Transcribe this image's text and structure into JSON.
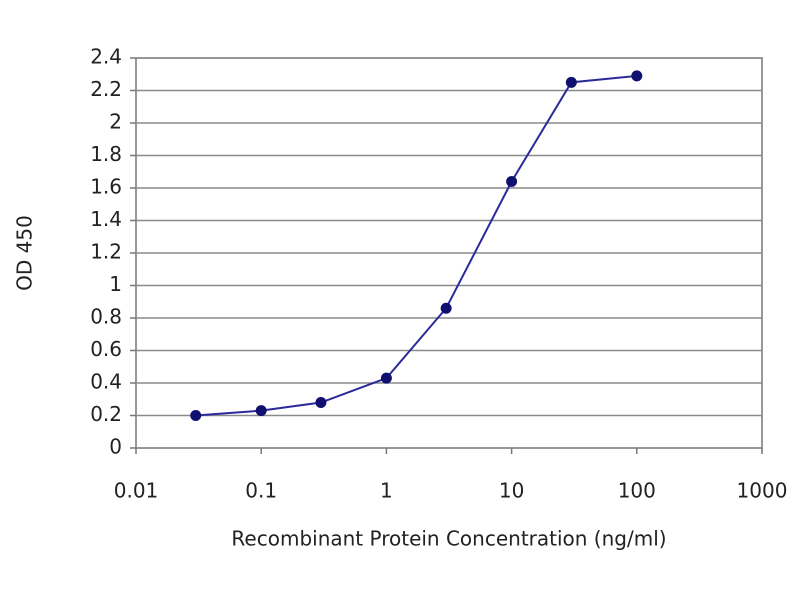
{
  "chart_data": {
    "type": "line",
    "x_label": "Recombinant Protein Concentration (ng/ml)",
    "y_label": "OD 450",
    "x": [
      0.03,
      0.1,
      0.3,
      1,
      3,
      10,
      30,
      100
    ],
    "values": [
      0.2,
      0.23,
      0.28,
      0.43,
      0.86,
      1.64,
      2.25,
      2.29
    ],
    "color": "#2a2a9a",
    "xscale": "log",
    "xlim": [
      0.01,
      1000
    ],
    "xticks": [
      0.01,
      0.1,
      1,
      10,
      100,
      1000
    ],
    "ylim": [
      0,
      2.4
    ],
    "yticks": [
      0,
      0.2,
      0.4,
      0.6,
      0.8,
      1,
      1.2,
      1.4,
      1.6,
      1.8,
      2,
      2.2,
      2.4
    ],
    "grid": true
  }
}
